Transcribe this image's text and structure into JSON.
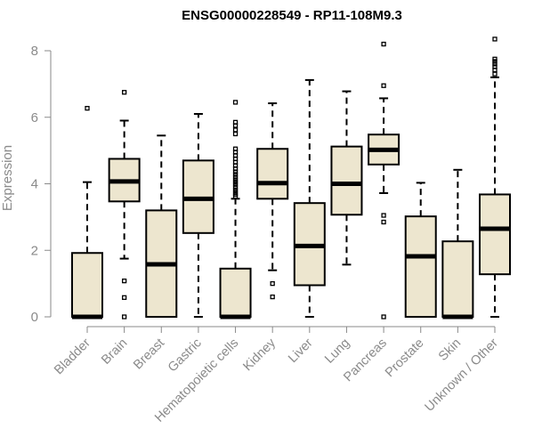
{
  "chart_data": {
    "type": "box",
    "title": "ENSG00000228549 - RP11-108M9.3",
    "xlabel": "",
    "ylabel": "Expression",
    "ylim": [
      0,
      8
    ],
    "yticks": [
      0,
      2,
      4,
      6,
      8
    ],
    "grid": false,
    "legend": "none",
    "colors": {
      "box_fill": "#ede6cf",
      "box_stroke": "#000000",
      "axis": "#8a8a8a",
      "text": "#8a8a8a",
      "title": "#000000"
    },
    "categories": [
      "Bladder",
      "Brain",
      "Breast",
      "Gastric",
      "Hematopoietic cells",
      "Kidney",
      "Liver",
      "Lung",
      "Pancreas",
      "Prostate",
      "Skin",
      "Unknown / Other"
    ],
    "boxes": [
      {
        "q1": 0.0,
        "median": 0.0,
        "q3": 1.92,
        "whisker_low": 0.0,
        "whisker_high": 4.05,
        "outliers": [
          6.27
        ]
      },
      {
        "q1": 3.47,
        "median": 4.07,
        "q3": 4.75,
        "whisker_low": 1.75,
        "whisker_high": 5.9,
        "outliers": [
          6.75,
          1.08,
          0.58,
          0.0
        ]
      },
      {
        "q1": 0.0,
        "median": 1.58,
        "q3": 3.2,
        "whisker_low": 0.0,
        "whisker_high": 5.45,
        "outliers": []
      },
      {
        "q1": 2.52,
        "median": 3.55,
        "q3": 4.7,
        "whisker_low": 0.0,
        "whisker_high": 6.1,
        "outliers": []
      },
      {
        "q1": 0.0,
        "median": 0.0,
        "q3": 1.45,
        "whisker_low": 0.0,
        "whisker_high": 3.55,
        "outliers": [
          3.62,
          3.68,
          3.75,
          3.82,
          3.9,
          3.98,
          4.05,
          4.12,
          4.2,
          4.28,
          4.36,
          4.45,
          4.55,
          4.65,
          4.75,
          4.85,
          4.95,
          5.05,
          5.5,
          5.62,
          5.75,
          5.85,
          6.45
        ]
      },
      {
        "q1": 3.55,
        "median": 4.02,
        "q3": 5.05,
        "whisker_low": 1.4,
        "whisker_high": 6.42,
        "outliers": [
          1.0,
          0.6
        ]
      },
      {
        "q1": 0.95,
        "median": 2.13,
        "q3": 3.42,
        "whisker_low": 0.0,
        "whisker_high": 7.12,
        "outliers": []
      },
      {
        "q1": 3.07,
        "median": 4.0,
        "q3": 5.12,
        "whisker_low": 1.57,
        "whisker_high": 6.78,
        "outliers": []
      },
      {
        "q1": 4.58,
        "median": 5.02,
        "q3": 5.48,
        "whisker_low": 3.72,
        "whisker_high": 6.57,
        "outliers": [
          8.2,
          6.95,
          3.05,
          2.85,
          0.0
        ]
      },
      {
        "q1": 0.0,
        "median": 1.82,
        "q3": 3.02,
        "whisker_low": 0.0,
        "whisker_high": 4.03,
        "outliers": []
      },
      {
        "q1": 0.0,
        "median": 0.0,
        "q3": 2.27,
        "whisker_low": 0.0,
        "whisker_high": 4.42,
        "outliers": []
      },
      {
        "q1": 1.28,
        "median": 2.65,
        "q3": 3.68,
        "whisker_low": 0.0,
        "whisker_high": 7.2,
        "outliers": [
          8.35,
          7.3,
          7.42,
          7.52,
          7.6,
          7.68,
          7.75
        ]
      }
    ]
  }
}
